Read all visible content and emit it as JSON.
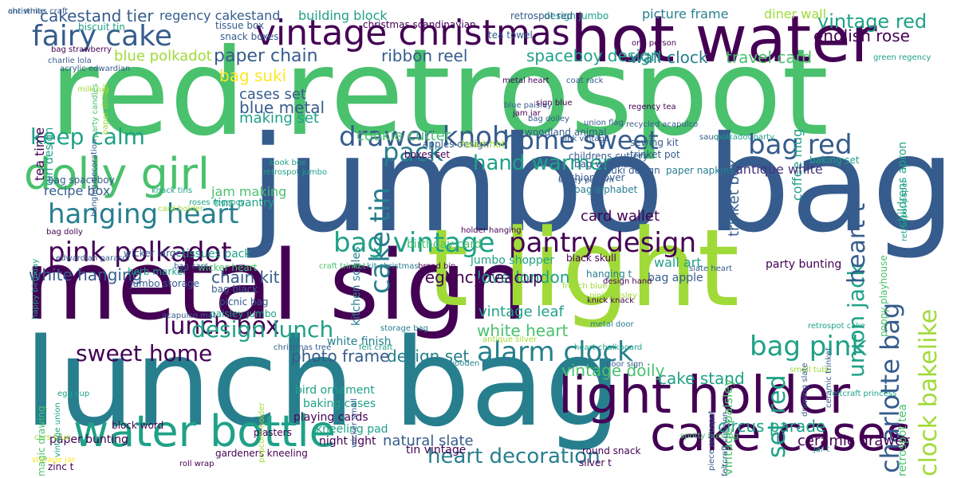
{
  "words": [
    "red retrospot",
    "jumbo bag",
    "lunch bag",
    "metal sign",
    "t light",
    "hot water",
    "vintage christmas",
    "light holder",
    "cake cases",
    "water bottle",
    "dolly girl",
    "fairy cake",
    "hanging heart",
    "pink polkadot",
    "bag vintage",
    "drawer knob",
    "pantry design",
    "alarm clock",
    "heart decoration",
    "lunch box",
    "sweet home",
    "design lunch",
    "home sweet",
    "hand warmer",
    "keep calm",
    "bag red",
    "bag pink",
    "pack",
    "cake tin",
    "set red",
    "clock bakelike",
    "charlotte bag",
    "union jack",
    "heart t",
    "vintage red",
    "english rose",
    "spaceboy design",
    "ribbon reel",
    "paper chain",
    "bag suki",
    "wall clock",
    "travel card",
    "cakestand tier",
    "regency cakestand",
    "building block",
    "picture frame",
    "diner wall",
    "blue polkadot",
    "cases set",
    "blue metal",
    "making set",
    "cookie cutter",
    "trinket box",
    "coffee mug",
    "vintage doily",
    "cake stand",
    "white heart",
    "vintage leaf",
    "love london",
    "regency teacup",
    "chain kit",
    "white hanging",
    "design set",
    "photo frame",
    "circus parade",
    "ceramic drawer",
    "antique white",
    "card wallet",
    "wall art",
    "bag apple",
    "party bunting",
    "recipe box",
    "jam making",
    "tins pantry",
    "tissues pack",
    "kitchen scales",
    "birthday card",
    "jumbo shopper",
    "retrospot tea",
    "vintage paisley",
    "white finish",
    "natural slate",
    "tin vintage",
    "round snack",
    "silver t",
    "bird ornament",
    "baking cases",
    "playing cards",
    "kneeling pad",
    "night light",
    "paper bunting",
    "block word",
    "gardeners kneeling",
    "zinc t",
    "plasters",
    "tea time",
    "girl design",
    "apples design",
    "heart hot",
    "boxes set",
    "bag woodland",
    "bag alphabet",
    "cushion cover",
    "suki design",
    "paper napkins",
    "baking set",
    "bag spaceboy",
    "christmas scandinavian",
    "tea towel",
    "snack boxes",
    "design jumbo",
    "retrospot red",
    "tissue box",
    "biscuit tin",
    "bag strawberry",
    "charlie lola",
    "acrylic edwardian",
    "metal heart",
    "coat rack",
    "blue paisley",
    "sign blue",
    "jam jar",
    "bag doiley",
    "regency tea",
    "woodland animal",
    "sewing kit",
    "trinket pot",
    "saucer",
    "polkadot party",
    "childrens cutlery",
    "hanging decoration",
    "book box",
    "retrospot jumbo",
    "wicker large",
    "wicker heart",
    "herb marker",
    "jumbo storage",
    "bag black",
    "picnic bag",
    "paisley jumbo",
    "acapulco mat",
    "craft trinket",
    "kit christmas",
    "bread bin",
    "black skull",
    "hanging t",
    "design hand",
    "slate heart",
    "french blue",
    "knick knack",
    "pink paisley",
    "metal door",
    "storage bag",
    "antique silver",
    "felt craft",
    "christmas tree",
    "wooden heart",
    "heart chalkboard",
    "door sign",
    "small tube",
    "ceramic trinket",
    "cars blue",
    "storage jar",
    "egg cup",
    "magic drawing",
    "popcorn holder",
    "roll wrap",
    "spotty bunting",
    "jar t",
    "edwardian parasol",
    "bag cars",
    "happy birthday",
    "bag dolly",
    "card holder",
    "roses regency",
    "party candles",
    "paper doilies",
    "milk jug",
    "knack tins",
    "vintage union",
    "one person",
    "green regency",
    "childrens apron",
    "poppy playhouse",
    "feltcraft princess",
    "drawing slate",
    "retrospot cake",
    "holder hanging",
    "doiley pattern",
    "retrospot paper",
    "feltcraft cushion",
    "piece retrospot",
    "wicker small",
    "union flag",
    "recycled acapulco",
    "pink vintage",
    "ant white",
    "christmas craft"
  ]
}
